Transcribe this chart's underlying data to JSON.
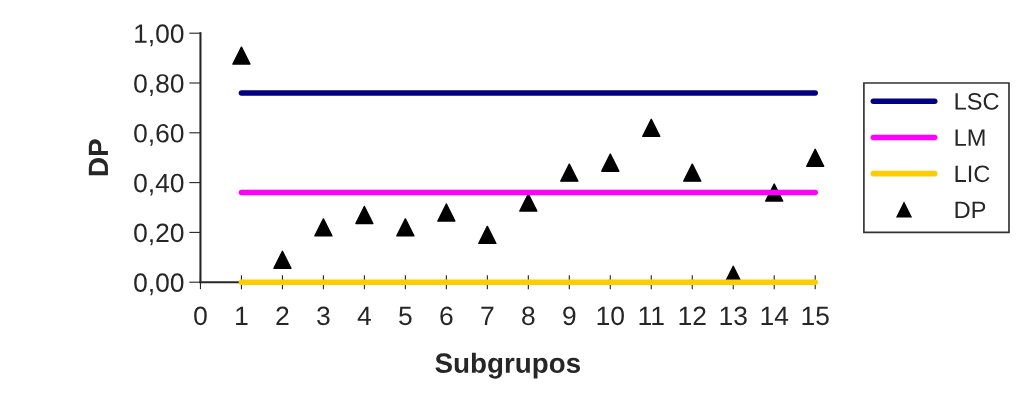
{
  "chart_data": {
    "type": "line",
    "xlabel": "Subgrupos",
    "ylabel": "DP",
    "x": [
      1,
      2,
      3,
      4,
      5,
      6,
      7,
      8,
      9,
      10,
      11,
      12,
      13,
      14,
      15
    ],
    "series": [
      {
        "name": "LSC",
        "color": "#000080",
        "values": [
          0.76,
          0.76,
          0.76,
          0.76,
          0.76,
          0.76,
          0.76,
          0.76,
          0.76,
          0.76,
          0.76,
          0.76,
          0.76,
          0.76,
          0.76
        ]
      },
      {
        "name": "LM",
        "color": "#ff00ff",
        "values": [
          0.36,
          0.36,
          0.36,
          0.36,
          0.36,
          0.36,
          0.36,
          0.36,
          0.36,
          0.36,
          0.36,
          0.36,
          0.36,
          0.36,
          0.36
        ]
      },
      {
        "name": "LIC",
        "color": "#ffcc00",
        "values": [
          0,
          0,
          0,
          0,
          0,
          0,
          0,
          0,
          0,
          0,
          0,
          0,
          0,
          0,
          0
        ]
      },
      {
        "name": "DP",
        "type": "scatter",
        "color": "#000000",
        "marker": "triangle",
        "values": [
          0.91,
          0.09,
          0.22,
          0.27,
          0.22,
          0.28,
          0.19,
          0.32,
          0.44,
          0.48,
          0.62,
          0.44,
          0.03,
          0.36,
          0.5
        ]
      }
    ],
    "xlim": [
      0,
      15
    ],
    "xticks": [
      0,
      1,
      2,
      3,
      4,
      5,
      6,
      7,
      8,
      9,
      10,
      11,
      12,
      13,
      14,
      15
    ],
    "ylim": [
      0,
      1
    ],
    "yticks": [
      {
        "value": 0,
        "label": "0,00"
      },
      {
        "value": 0.2,
        "label": "0,20"
      },
      {
        "value": 0.4,
        "label": "0,40"
      },
      {
        "value": 0.6,
        "label": "0,60"
      },
      {
        "value": 0.8,
        "label": "0,80"
      },
      {
        "value": 1,
        "label": "1,00"
      }
    ],
    "grid": false,
    "legend": "right"
  }
}
